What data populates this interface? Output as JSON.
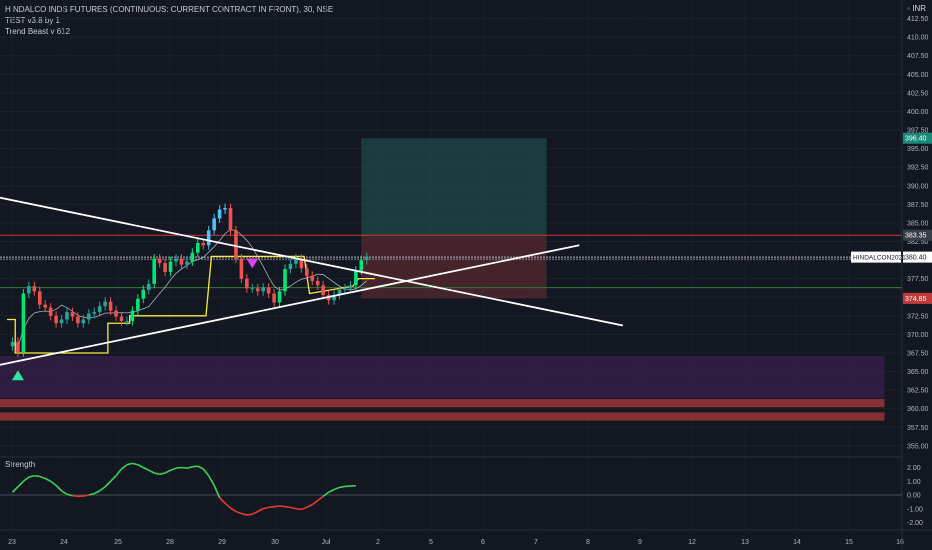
{
  "header": {
    "title": "HINDALCO INDS FUTURES (CONTINUOUS: CURRENT CONTRACT IN FRONT), 30, NSE",
    "indicators": [
      "TEST v3.8 by 1",
      "Trend Beast v 612"
    ],
    "currency": "INR"
  },
  "oscillator": {
    "title": "Strength"
  },
  "colors": {
    "background": "#131722",
    "up": "#26a69a",
    "down": "#ef5350",
    "bright_up": "#00e676",
    "trendline": "#ffffff",
    "stop": "#ffeb3b",
    "target_zone": "#1e4d4a",
    "risk_zone": "#5a2a2e",
    "support_zone": "#3b1f4e",
    "resistance_band": "#b23a3a"
  },
  "chart_data": {
    "type": "candlestick",
    "title": "HINDALCO INDS FUTURES (CONTINUOUS: CURRENT CONTRACT IN FRONT), 30, NSE",
    "x_tick_labels": [
      "23",
      "24",
      "25",
      "28",
      "29",
      "30",
      "Jul",
      "2",
      "5",
      "6",
      "7",
      "8",
      "9",
      "12",
      "13",
      "14",
      "15",
      "16"
    ],
    "y_tick_labels": [
      "412.50",
      "410.00",
      "407.50",
      "405.00",
      "402.50",
      "400.00",
      "397.50",
      "395.00",
      "392.50",
      "390.00",
      "387.50",
      "385.00",
      "382.50",
      "380.00",
      "377.50",
      "375.00",
      "372.50",
      "370.00",
      "367.50",
      "365.00",
      "362.50",
      "360.00",
      "357.50",
      "355.00"
    ],
    "ylim": [
      353.5,
      415
    ],
    "price_labels": {
      "target": "396.40",
      "entry": "383.35",
      "current": "380.40",
      "stop": "374.85",
      "symbol": "HINDALCON2021"
    },
    "horizontal_levels": [
      383.35,
      380.4,
      376.3
    ],
    "closes": [
      369.0,
      367.6,
      375.5,
      376.5,
      375.8,
      374.0,
      373.6,
      372.5,
      371.5,
      372.0,
      373.0,
      372.4,
      371.5,
      372.0,
      372.8,
      373.0,
      373.8,
      374.4,
      373.2,
      372.4,
      371.8,
      371.8,
      373.2,
      374.8,
      376.0,
      376.8,
      380.2,
      379.6,
      378.4,
      379.8,
      380.2,
      379.4,
      379.8,
      381.0,
      382.3,
      382.0,
      384.0,
      385.6,
      386.8,
      387.0,
      384.0,
      380.2,
      377.5,
      376.2,
      376.2,
      375.8,
      376.3,
      375.5,
      374.3,
      375.8,
      378.8,
      379.5,
      380.2,
      378.9,
      377.9,
      377.2,
      376.6,
      375.3,
      374.6,
      375.3,
      376.0,
      376.2,
      376.6,
      378.6,
      380.0,
      380.4
    ],
    "markers": [
      {
        "type": "buy",
        "index": 1
      },
      {
        "type": "sell",
        "index": 44
      }
    ],
    "trendlines": [
      {
        "name": "descending",
        "from": [
          -3,
          388.5
        ],
        "to": [
          112,
          371.2
        ]
      },
      {
        "name": "ascending",
        "from": [
          -3,
          365.8
        ],
        "to": [
          104,
          382.0
        ]
      }
    ],
    "stop_steps": [
      [
        -1,
        372.0
      ],
      [
        0.5,
        372.0
      ],
      [
        0.5,
        367.5
      ],
      [
        17.5,
        367.5
      ],
      [
        17.5,
        371.5
      ],
      [
        21.5,
        371.5
      ],
      [
        21.5,
        372.5
      ],
      [
        33.5,
        372.5
      ],
      [
        35.5,
        372.5
      ],
      [
        36.5,
        380.5
      ],
      [
        53.5,
        380.5
      ],
      [
        54.5,
        375.5
      ],
      [
        62.5,
        376.5
      ],
      [
        63.5,
        377.5
      ],
      [
        66.5,
        377.5
      ]
    ],
    "zones": [
      {
        "name": "target",
        "x0": 64,
        "x1": 98,
        "y0": 383.35,
        "y1": 396.4
      },
      {
        "name": "risk",
        "x0": 64,
        "x1": 98,
        "y0": 374.85,
        "y1": 383.35
      },
      {
        "name": "support",
        "x0": -3,
        "x1": 160,
        "y0": 361.4,
        "y1": 367.1
      },
      {
        "name": "resistance-1",
        "x0": -3,
        "x1": 160,
        "y0": 360.2,
        "y1": 361.3
      },
      {
        "name": "resistance-2",
        "x0": -3,
        "x1": 160,
        "y0": 358.4,
        "y1": 359.5
      }
    ],
    "oscillator": {
      "title": "Strength",
      "y_tick_labels": [
        "2.00",
        "1.00",
        "0.00",
        "-1.00",
        "-2.00"
      ],
      "ylim": [
        -2.4,
        2.4
      ],
      "values": [
        0.2,
        0.6,
        1.0,
        1.3,
        1.4,
        1.35,
        1.2,
        1.0,
        0.7,
        0.3,
        0.05,
        -0.05,
        -0.1,
        -0.08,
        0.0,
        0.1,
        0.3,
        0.6,
        1.0,
        1.4,
        1.9,
        2.2,
        2.3,
        2.2,
        2.0,
        1.8,
        1.6,
        1.5,
        1.6,
        1.8,
        1.95,
        2.0,
        1.95,
        2.05,
        2.1,
        1.9,
        1.4,
        0.7,
        -0.2,
        -0.6,
        -0.95,
        -1.2,
        -1.35,
        -1.45,
        -1.4,
        -1.2,
        -1.0,
        -0.9,
        -0.85,
        -0.8,
        -0.85,
        -0.9,
        -1.0,
        -1.05,
        -0.9,
        -0.7,
        -0.4,
        -0.1,
        0.2,
        0.4,
        0.55,
        0.62,
        0.65,
        0.68
      ]
    }
  }
}
